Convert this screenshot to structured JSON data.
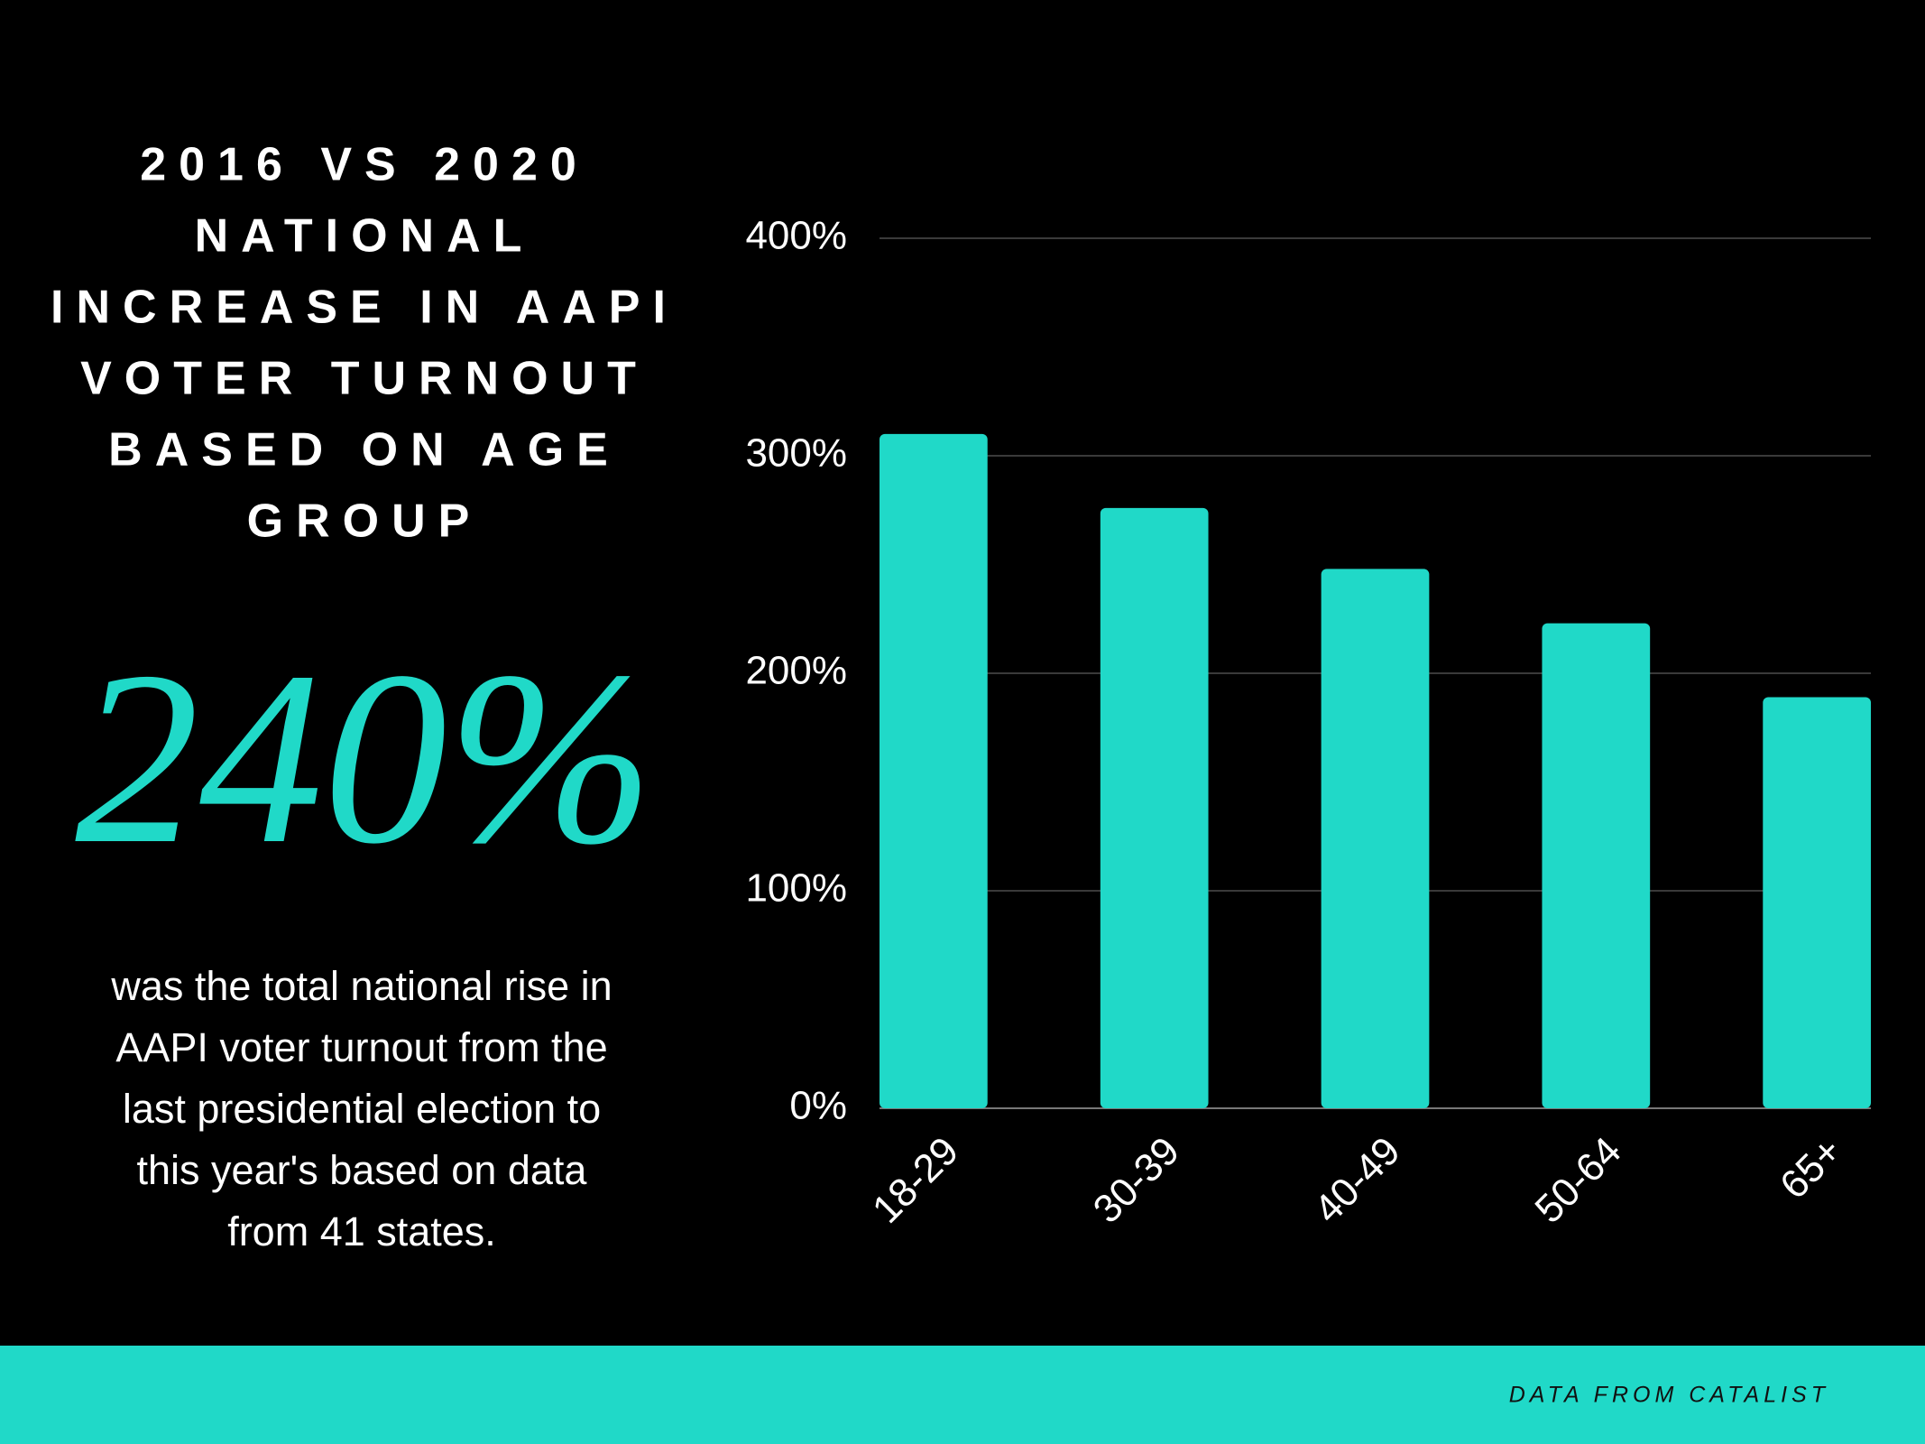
{
  "title_lines": [
    "2016 VS 2020",
    "NATIONAL",
    "INCREASE IN AAPI",
    "VOTER TURNOUT",
    "BASED ON AGE",
    "GROUP"
  ],
  "highlight": "240%",
  "description_lines": [
    "was the total national rise in",
    "AAPI voter turnout from the",
    "last presidential election to",
    "this year's based on data",
    "from 41 states."
  ],
  "footer": "DATA FROM CATALIST",
  "chart_data": {
    "type": "bar",
    "categories": [
      "18-29",
      "30-39",
      "40-49",
      "50-64",
      "65+"
    ],
    "values": [
      310,
      276,
      248,
      223,
      189
    ],
    "color": "#20d9c8",
    "ylim": [
      0,
      400
    ],
    "yticks": [
      {
        "value": 0,
        "label": "0%"
      },
      {
        "value": 100,
        "label": "100%"
      },
      {
        "value": 200,
        "label": "200%"
      },
      {
        "value": 300,
        "label": "300%"
      },
      {
        "value": 400,
        "label": "400%"
      }
    ],
    "grid": true
  }
}
